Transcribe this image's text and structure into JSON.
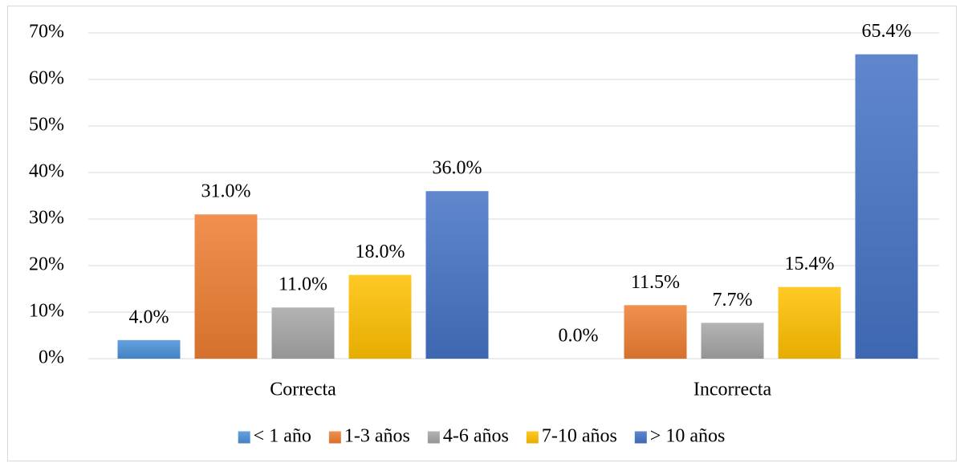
{
  "chart_data": {
    "type": "bar",
    "categories": [
      "Correcta",
      "Incorrecta"
    ],
    "series": [
      {
        "name": "< 1 año",
        "color": "#4a90d9",
        "values": [
          4.0,
          0.0
        ],
        "value_labels": [
          "4.0%",
          "0.0%"
        ]
      },
      {
        "name": "1-3 años",
        "color": "#ed7d31",
        "values": [
          31.0,
          11.5
        ],
        "value_labels": [
          "31.0%",
          "11.5%"
        ]
      },
      {
        "name": "4-6 años",
        "color": "#a5a5a5",
        "values": [
          11.0,
          7.7
        ],
        "value_labels": [
          "11.0%",
          "7.7%"
        ]
      },
      {
        "name": "7-10 años",
        "color": "#ffc000",
        "values": [
          18.0,
          15.4
        ],
        "value_labels": [
          "18.0%",
          "15.4%"
        ]
      },
      {
        "name": "> 10 años",
        "color": "#4472c4",
        "values": [
          36.0,
          65.4
        ],
        "value_labels": [
          "36.0%",
          "65.4%"
        ]
      }
    ],
    "ylim": [
      0,
      70
    ],
    "yticks": [
      {
        "value": 0,
        "label": "0%"
      },
      {
        "value": 10,
        "label": "10%"
      },
      {
        "value": 20,
        "label": "20%"
      },
      {
        "value": 30,
        "label": "30%"
      },
      {
        "value": 40,
        "label": "40%"
      },
      {
        "value": 50,
        "label": "50%"
      },
      {
        "value": 60,
        "label": "60%"
      },
      {
        "value": 70,
        "label": "70%"
      }
    ],
    "grid": true,
    "legend": "bottom"
  }
}
